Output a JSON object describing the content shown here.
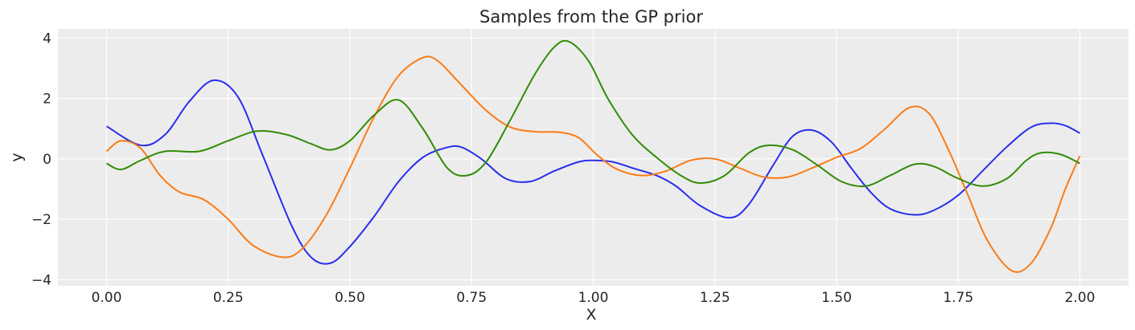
{
  "chart_data": {
    "type": "line",
    "title": "Samples from the GP prior",
    "xlabel": "X",
    "ylabel": "y",
    "xlim": [
      -0.1,
      2.1
    ],
    "ylim": [
      -4.2,
      4.3
    ],
    "grid": true,
    "background": "#ececec",
    "xticks": [
      0.0,
      0.25,
      0.5,
      0.75,
      1.0,
      1.25,
      1.5,
      1.75,
      2.0
    ],
    "xtick_labels": [
      "0.00",
      "0.25",
      "0.50",
      "0.75",
      "1.00",
      "1.25",
      "1.50",
      "1.75",
      "2.00"
    ],
    "yticks": [
      -4,
      -2,
      0,
      2,
      4
    ],
    "ytick_labels": [
      "−4",
      "−2",
      "0",
      "2",
      "4"
    ],
    "series": [
      {
        "color": "#2a2eec",
        "x": [
          0.0,
          0.07,
          0.12,
          0.17,
          0.22,
          0.27,
          0.32,
          0.38,
          0.42,
          0.46,
          0.5,
          0.55,
          0.6,
          0.65,
          0.7,
          0.73,
          0.77,
          0.82,
          0.87,
          0.92,
          0.97,
          1.0,
          1.04,
          1.08,
          1.13,
          1.17,
          1.22,
          1.28,
          1.32,
          1.37,
          1.41,
          1.45,
          1.49,
          1.53,
          1.57,
          1.61,
          1.66,
          1.7,
          1.75,
          1.8,
          1.85,
          1.9,
          1.94,
          1.97,
          2.0
        ],
        "y": [
          1.08,
          0.45,
          0.8,
          1.9,
          2.6,
          2.05,
          0.15,
          -2.2,
          -3.25,
          -3.45,
          -2.9,
          -1.9,
          -0.75,
          0.05,
          0.38,
          0.38,
          0.0,
          -0.65,
          -0.75,
          -0.4,
          -0.1,
          -0.05,
          -0.1,
          -0.3,
          -0.55,
          -0.9,
          -1.55,
          -1.95,
          -1.5,
          -0.2,
          0.75,
          0.95,
          0.55,
          -0.3,
          -1.1,
          -1.65,
          -1.85,
          -1.7,
          -1.2,
          -0.4,
          0.4,
          1.05,
          1.18,
          1.1,
          0.85
        ]
      },
      {
        "color": "#fa7c17",
        "x": [
          0.0,
          0.03,
          0.07,
          0.11,
          0.15,
          0.2,
          0.25,
          0.3,
          0.36,
          0.4,
          0.45,
          0.5,
          0.55,
          0.6,
          0.65,
          0.68,
          0.72,
          0.78,
          0.83,
          0.88,
          0.93,
          0.97,
          1.01,
          1.05,
          1.1,
          1.15,
          1.2,
          1.25,
          1.3,
          1.35,
          1.4,
          1.45,
          1.5,
          1.55,
          1.6,
          1.65,
          1.69,
          1.73,
          1.77,
          1.81,
          1.86,
          1.9,
          1.94,
          1.97,
          2.0
        ],
        "y": [
          0.25,
          0.6,
          0.35,
          -0.55,
          -1.1,
          -1.35,
          -2.0,
          -2.85,
          -3.25,
          -3.0,
          -1.9,
          -0.3,
          1.4,
          2.75,
          3.35,
          3.25,
          2.6,
          1.6,
          1.05,
          0.9,
          0.88,
          0.7,
          0.1,
          -0.35,
          -0.55,
          -0.4,
          -0.05,
          0.0,
          -0.3,
          -0.6,
          -0.6,
          -0.3,
          0.05,
          0.35,
          1.0,
          1.7,
          1.5,
          0.3,
          -1.2,
          -2.7,
          -3.7,
          -3.45,
          -2.3,
          -1.0,
          0.1
        ]
      },
      {
        "color": "#328c06",
        "x": [
          0.0,
          0.03,
          0.07,
          0.12,
          0.19,
          0.25,
          0.31,
          0.37,
          0.42,
          0.46,
          0.5,
          0.55,
          0.6,
          0.65,
          0.7,
          0.74,
          0.78,
          0.83,
          0.88,
          0.92,
          0.95,
          0.99,
          1.03,
          1.08,
          1.13,
          1.18,
          1.22,
          1.27,
          1.32,
          1.36,
          1.41,
          1.46,
          1.51,
          1.56,
          1.61,
          1.66,
          1.7,
          1.75,
          1.8,
          1.85,
          1.89,
          1.92,
          1.96,
          2.0
        ],
        "y": [
          -0.15,
          -0.35,
          -0.05,
          0.25,
          0.25,
          0.6,
          0.92,
          0.8,
          0.5,
          0.3,
          0.6,
          1.45,
          1.95,
          1.0,
          -0.3,
          -0.55,
          -0.1,
          1.3,
          2.8,
          3.7,
          3.88,
          3.25,
          2.0,
          0.8,
          0.05,
          -0.55,
          -0.8,
          -0.55,
          0.2,
          0.45,
          0.3,
          -0.2,
          -0.75,
          -0.9,
          -0.55,
          -0.18,
          -0.25,
          -0.65,
          -0.9,
          -0.65,
          -0.05,
          0.2,
          0.15,
          -0.15
        ]
      }
    ]
  }
}
